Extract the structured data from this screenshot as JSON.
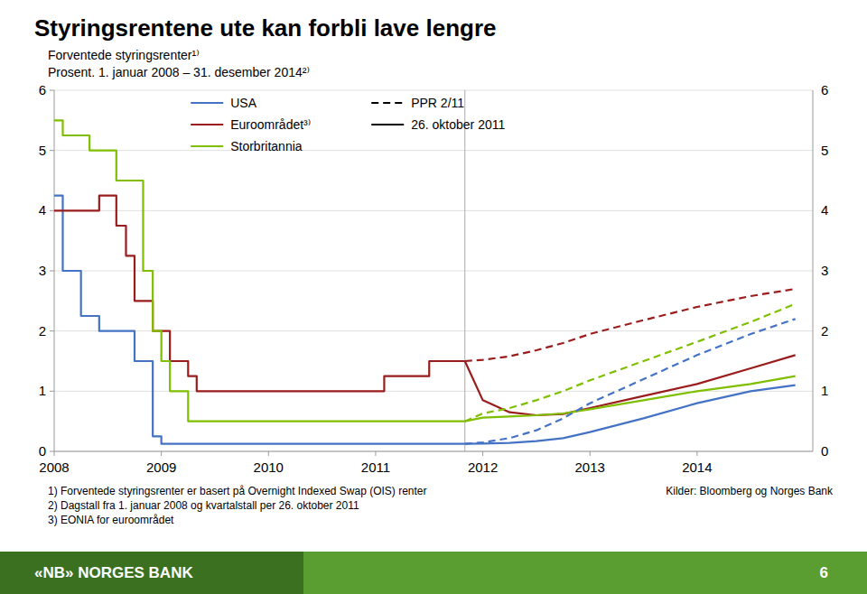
{
  "chart_data": {
    "type": "line",
    "title": "Styringsrentene ute kan forbli lave lengre",
    "subtitle1": "Forventede styringsrenter¹⁾",
    "subtitle2": "Prosent.  1. januar 2008 – 31. desember 2014²⁾",
    "xlim": [
      2008.0,
      2015.08
    ],
    "xticks": [
      2008,
      2009,
      2010,
      2011,
      2012,
      2013,
      2014
    ],
    "ylim": [
      0,
      6
    ],
    "yticks": [
      0,
      1,
      2,
      3,
      4,
      5,
      6
    ],
    "grid": true,
    "legend": "upper left",
    "split_x": 2011.833,
    "series": [
      {
        "type": "step",
        "color": "#4472c4",
        "line_style": "solid",
        "x": [
          2008.0,
          2008.08,
          2008.25,
          2008.42,
          2008.58,
          2008.75,
          2008.92,
          2009.0,
          2009.92,
          2011.833
        ],
        "values": [
          4.25,
          3.0,
          2.25,
          2.0,
          2.0,
          1.5,
          0.25,
          0.125,
          0.125,
          0.125
        ]
      },
      {
        "type": "step",
        "color": "#9b1c1c",
        "line_style": "solid",
        "x": [
          2008.0,
          2008.42,
          2008.5,
          2008.58,
          2008.67,
          2008.75,
          2008.92,
          2009.0,
          2009.08,
          2009.25,
          2009.33,
          2009.92,
          2010.0,
          2011.0,
          2011.08,
          2011.33,
          2011.5,
          2011.833
        ],
        "values": [
          4.0,
          4.25,
          4.25,
          3.75,
          3.25,
          2.5,
          2.0,
          2.0,
          1.5,
          1.25,
          1.0,
          1.0,
          1.0,
          1.0,
          1.25,
          1.25,
          1.5,
          1.5
        ]
      },
      {
        "type": "step",
        "color": "#7fbf00",
        "line_style": "solid",
        "x": [
          2008.0,
          2008.08,
          2008.33,
          2008.5,
          2008.58,
          2008.75,
          2008.83,
          2008.92,
          2009.0,
          2009.08,
          2009.25,
          2009.92,
          2011.833
        ],
        "values": [
          5.5,
          5.25,
          5.0,
          5.0,
          4.5,
          4.5,
          3.0,
          2.0,
          1.5,
          1.0,
          0.5,
          0.5,
          0.5
        ]
      },
      {
        "type": "line",
        "color": "#4472c4",
        "line_style": "solid",
        "x": [
          2011.833,
          2012.0,
          2012.25,
          2012.5,
          2012.75,
          2013.0,
          2013.5,
          2014.0,
          2014.5,
          2014.917
        ],
        "values": [
          0.125,
          0.13,
          0.14,
          0.17,
          0.22,
          0.32,
          0.55,
          0.8,
          1.0,
          1.1
        ]
      },
      {
        "type": "line",
        "color": "#9b1c1c",
        "line_style": "solid",
        "x": [
          2011.833,
          2012.0,
          2012.25,
          2012.5,
          2012.75,
          2013.0,
          2013.5,
          2014.0,
          2014.5,
          2014.917
        ],
        "values": [
          1.5,
          0.85,
          0.65,
          0.6,
          0.62,
          0.72,
          0.92,
          1.12,
          1.38,
          1.6
        ]
      },
      {
        "type": "line",
        "color": "#7fbf00",
        "line_style": "solid",
        "x": [
          2011.833,
          2012.0,
          2012.25,
          2012.5,
          2012.75,
          2013.0,
          2013.5,
          2014.0,
          2014.5,
          2014.917
        ],
        "values": [
          0.5,
          0.56,
          0.58,
          0.6,
          0.63,
          0.7,
          0.85,
          1.0,
          1.12,
          1.25
        ]
      },
      {
        "type": "line",
        "color": "#4472c4",
        "line_style": "dashed",
        "x": [
          2011.833,
          2012.0,
          2012.25,
          2012.5,
          2012.75,
          2013.0,
          2013.5,
          2014.0,
          2014.5,
          2014.917
        ],
        "values": [
          0.125,
          0.15,
          0.22,
          0.35,
          0.55,
          0.8,
          1.2,
          1.6,
          1.95,
          2.2
        ]
      },
      {
        "type": "line",
        "color": "#9b1c1c",
        "line_style": "dashed",
        "x": [
          2011.833,
          2012.0,
          2012.25,
          2012.5,
          2012.75,
          2013.0,
          2013.5,
          2014.0,
          2014.5,
          2014.917
        ],
        "values": [
          1.5,
          1.52,
          1.58,
          1.68,
          1.8,
          1.95,
          2.18,
          2.4,
          2.58,
          2.7
        ]
      },
      {
        "type": "line",
        "color": "#7fbf00",
        "line_style": "dashed",
        "x": [
          2011.833,
          2012.0,
          2012.25,
          2012.5,
          2012.75,
          2013.0,
          2013.5,
          2014.0,
          2014.5,
          2014.917
        ],
        "values": [
          0.5,
          0.63,
          0.72,
          0.85,
          1.0,
          1.18,
          1.5,
          1.82,
          2.15,
          2.45
        ]
      }
    ],
    "legend_entries": [
      {
        "name": "USA",
        "color": "#4472c4",
        "line_style": "solid"
      },
      {
        "name": "Euroområdet³⁾",
        "color": "#9b1c1c",
        "line_style": "solid"
      },
      {
        "name": "Storbritannia",
        "color": "#7fbf00",
        "line_style": "solid"
      },
      {
        "name": "PPR 2/11",
        "color": "#000000",
        "line_style": "dashed"
      },
      {
        "name": "26. oktober 2011",
        "color": "#000000",
        "line_style": "solid"
      }
    ],
    "footnote1": "1) Forventede styringsrenter er basert på Overnight Indexed Swap (OIS) renter",
    "footnote2": "2) Dagstall fra 1. januar 2008 og kvartalstall per 26. oktober 2011",
    "footnote3": "3) EONIA for euroområdet",
    "source": "Kilder: Bloomberg og Norges Bank",
    "footer": "«NB»  NORGES BANK",
    "page_number": "6"
  }
}
